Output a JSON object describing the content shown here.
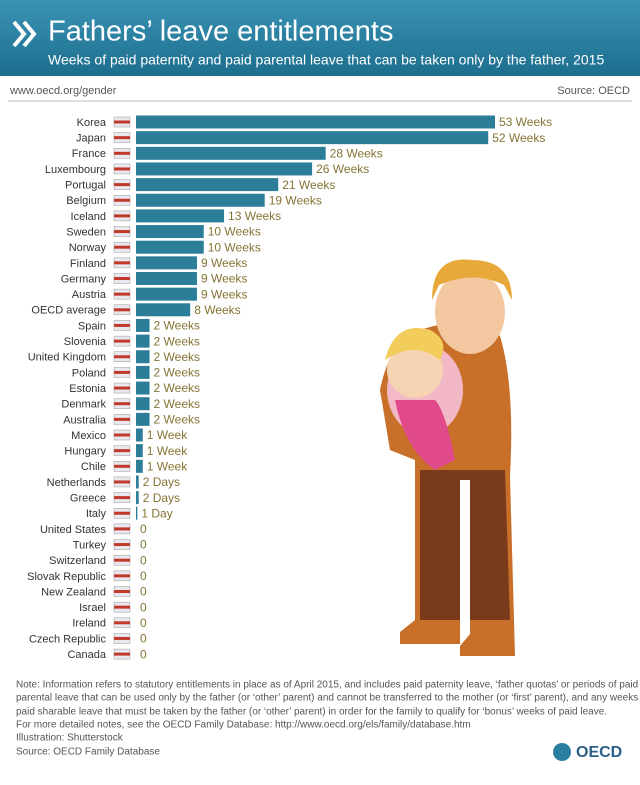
{
  "header": {
    "title": "Fathers’ leave entitlements",
    "subtitle": "Weeks of paid paternity and paid parental leave that can be taken only by the father, 2015",
    "url": "www.oecd.org/gender",
    "source": "Source: OECD"
  },
  "chart_data": {
    "type": "hbar",
    "color": "#2b7d98",
    "label_color": "#857434",
    "categories": [
      "Korea",
      "Japan",
      "France",
      "Luxembourg",
      "Portugal",
      "Belgium",
      "Iceland",
      "Sweden",
      "Norway",
      "Finland",
      "Germany",
      "Austria",
      "OECD average",
      "Spain",
      "Slovenia",
      "United Kingdom",
      "Poland",
      "Estonia",
      "Denmark",
      "Australia",
      "Mexico",
      "Hungary",
      "Chile",
      "Netherlands",
      "Greece",
      "Italy",
      "United States",
      "Turkey",
      "Switzerland",
      "Slovak Republic",
      "New Zealand",
      "Israel",
      "Ireland",
      "Czech Republic",
      "Canada"
    ],
    "values": [
      53,
      52,
      28,
      26,
      21,
      19,
      13,
      10,
      10,
      9,
      9,
      9,
      8,
      2,
      2,
      2,
      2,
      2,
      2,
      2,
      1,
      1,
      1,
      0.4,
      0.4,
      0.2,
      0,
      0,
      0,
      0,
      0,
      0,
      0,
      0,
      0
    ],
    "value_labels": [
      "53 Weeks",
      "52 Weeks",
      "28 Weeks",
      "26 Weeks",
      "21 Weeks",
      "19 Weeks",
      "13 Weeks",
      "10 Weeks",
      "10 Weeks",
      "9 Weeks",
      "9 Weeks",
      "9 Weeks",
      "8 Weeks",
      "2 Weeks",
      "2 Weeks",
      "2 Weeks",
      "2 Weeks",
      "2 Weeks",
      "2 Weeks",
      "2 Weeks",
      "1 Week",
      "1 Week",
      "1 Week",
      "2 Days",
      "2 Days",
      "1 Day",
      "0",
      "0",
      "0",
      "0",
      "0",
      "0",
      "0",
      "0",
      "0"
    ]
  },
  "footer": {
    "notes": [
      "Note: Information refers to statutory entitlements in place as of April 2015, and includes paid paternity leave, ‘father quotas’ or periods of paid",
      "parental leave that can be used only by the father (or ‘other’ parent) and cannot be transferred to the mother (or ‘first’ parent), and any weeks of",
      "paid sharable leave that must be taken by the father (or ‘other’ parent) in order for the family to qualify for ‘bonus’ weeks of paid leave.",
      "For more detailed notes, see the OECD Family Database: http://www.oecd.org/els/family/database.htm",
      "Illustration: Shutterstock",
      "Source: OECD Family Database"
    ],
    "logo": "OECD"
  }
}
